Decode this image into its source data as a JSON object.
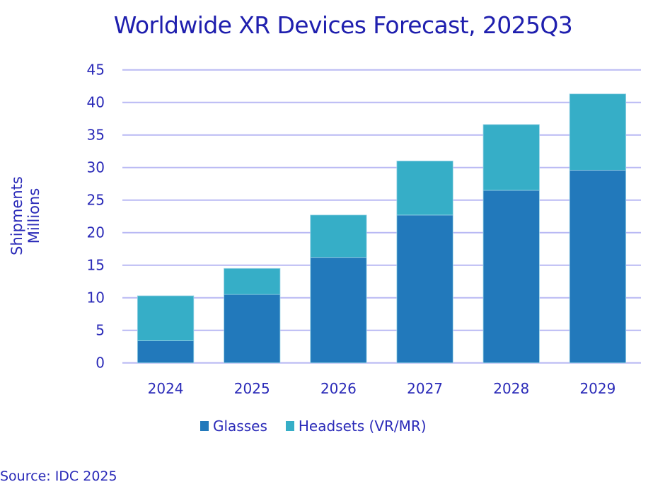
{
  "chart_data": {
    "type": "bar",
    "stacked": true,
    "title": "Worldwide XR Devices Forecast, 2025Q3",
    "xlabel": "",
    "ylabel": [
      "Shipments",
      "Millions"
    ],
    "categories": [
      "2024",
      "2025",
      "2026",
      "2027",
      "2028",
      "2029"
    ],
    "series": [
      {
        "name": "Glasses",
        "color": "#2279bb",
        "values": [
          3.4,
          10.5,
          16.2,
          22.7,
          26.5,
          29.6
        ]
      },
      {
        "name": "Headsets (VR/MR)",
        "color": "#36aec7",
        "values": [
          6.9,
          4.0,
          6.5,
          8.3,
          10.1,
          11.7
        ]
      }
    ],
    "totals": [
      10.3,
      14.5,
      22.7,
      31.0,
      36.6,
      41.3
    ],
    "ylim": [
      0,
      45
    ],
    "yticks": [
      0,
      5,
      10,
      15,
      20,
      25,
      30,
      35,
      40,
      45
    ],
    "grid": true,
    "gridColor": "#b9b9f4",
    "legend": "bottom",
    "source": "Source: IDC 2025"
  }
}
